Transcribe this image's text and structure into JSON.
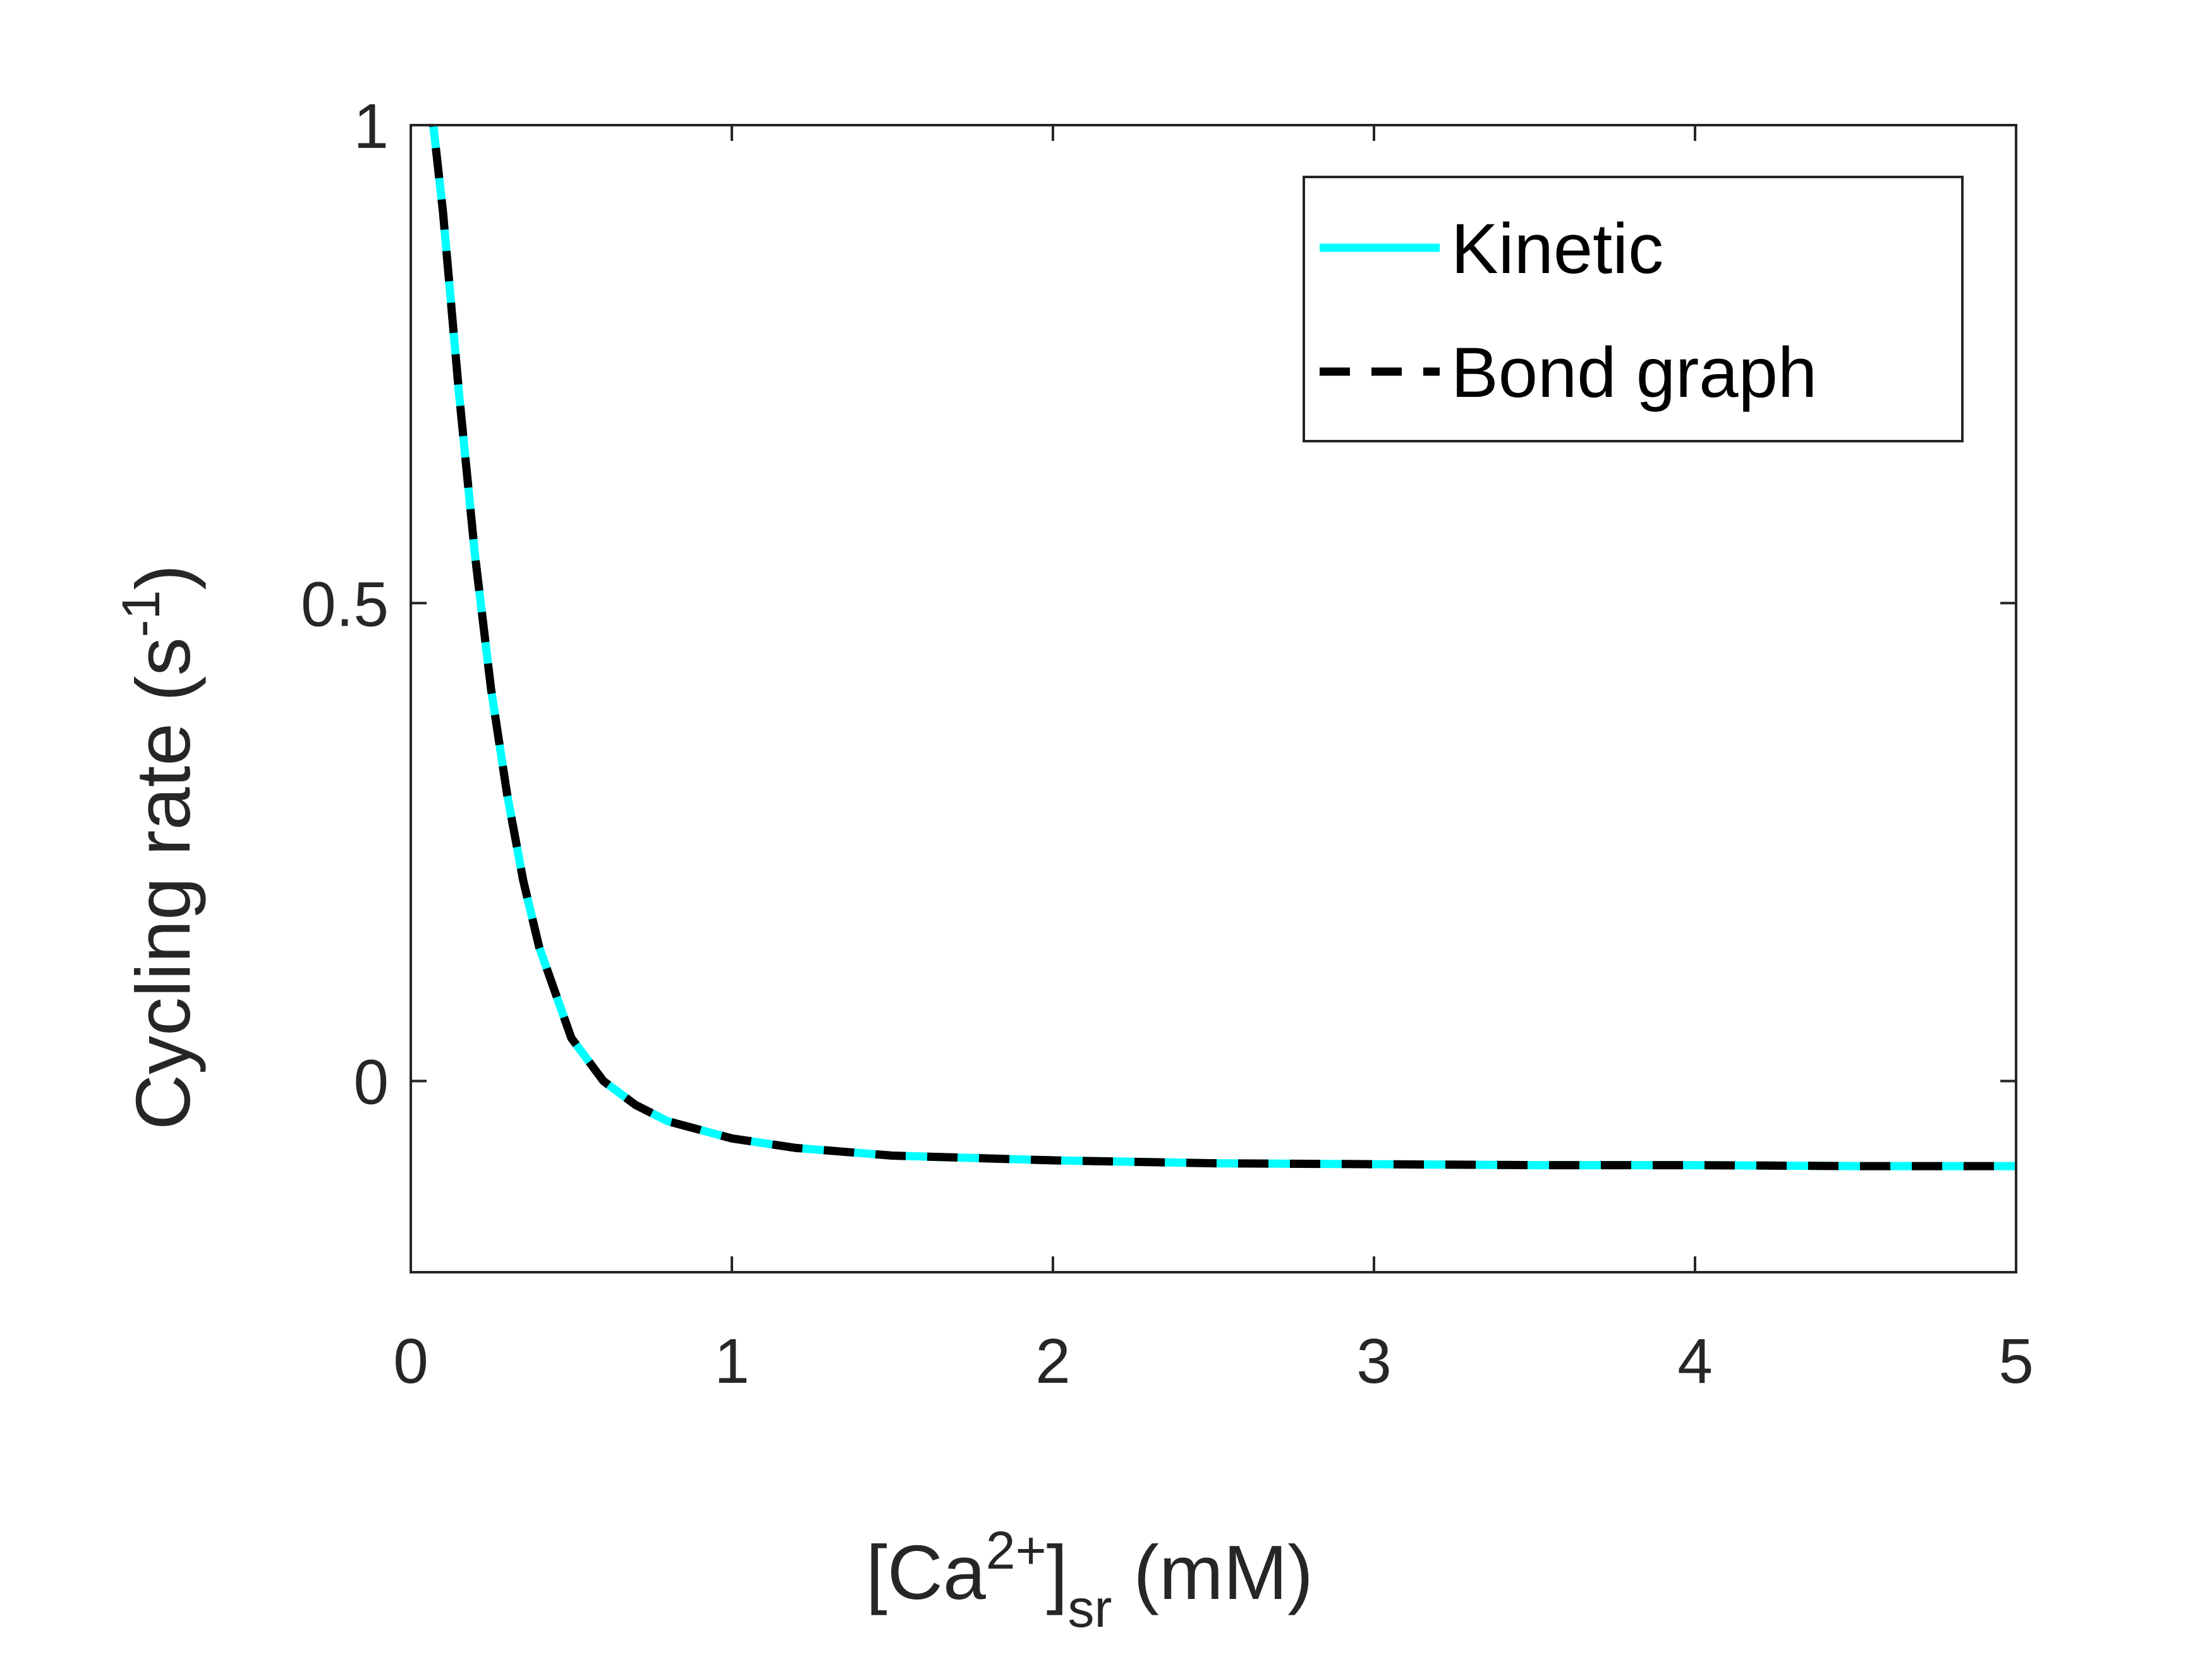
{
  "chart_data": {
    "type": "line",
    "xlabel": {
      "open": "[Ca",
      "sup": "2+",
      "close": "]",
      "sub": "sr",
      "unit": " (mM)"
    },
    "ylabel": {
      "main": "Cycling rate (s",
      "sup": "-1",
      "close": ")"
    },
    "xlim": [
      0,
      5
    ],
    "ylim": [
      -0.2,
      1
    ],
    "x_ticks": [
      0,
      1,
      2,
      3,
      4,
      5
    ],
    "x_tick_labels": [
      "0",
      "1",
      "2",
      "3",
      "4",
      "5"
    ],
    "y_ticks": [
      0,
      0.5,
      1
    ],
    "y_tick_labels": [
      "0",
      "0.5",
      "1"
    ],
    "grid": false,
    "legend_position": "top-right",
    "series": [
      {
        "name": "Kinetic",
        "style": "solid",
        "color": "#00FFFF",
        "x": [
          0.06,
          0.1,
          0.15,
          0.2,
          0.25,
          0.3,
          0.35,
          0.4,
          0.5,
          0.6,
          0.7,
          0.8,
          1.0,
          1.2,
          1.5,
          2.0,
          2.5,
          3.0,
          3.5,
          4.0,
          4.5,
          5.0
        ],
        "y": [
          1.03,
          0.91,
          0.72,
          0.55,
          0.41,
          0.3,
          0.21,
          0.14,
          0.045,
          0.0,
          -0.025,
          -0.042,
          -0.06,
          -0.07,
          -0.078,
          -0.083,
          -0.086,
          -0.087,
          -0.088,
          -0.088,
          -0.089,
          -0.089
        ]
      },
      {
        "name": "Bond graph",
        "style": "dashed",
        "color": "#000000",
        "x": [
          0.06,
          0.1,
          0.15,
          0.2,
          0.25,
          0.3,
          0.35,
          0.4,
          0.5,
          0.6,
          0.7,
          0.8,
          1.0,
          1.2,
          1.5,
          2.0,
          2.5,
          3.0,
          3.5,
          4.0,
          4.5,
          5.0
        ],
        "y": [
          1.03,
          0.91,
          0.72,
          0.55,
          0.41,
          0.3,
          0.21,
          0.14,
          0.045,
          0.0,
          -0.025,
          -0.042,
          -0.06,
          -0.07,
          -0.078,
          -0.083,
          -0.086,
          -0.087,
          -0.088,
          -0.088,
          -0.089,
          -0.089
        ]
      }
    ]
  }
}
